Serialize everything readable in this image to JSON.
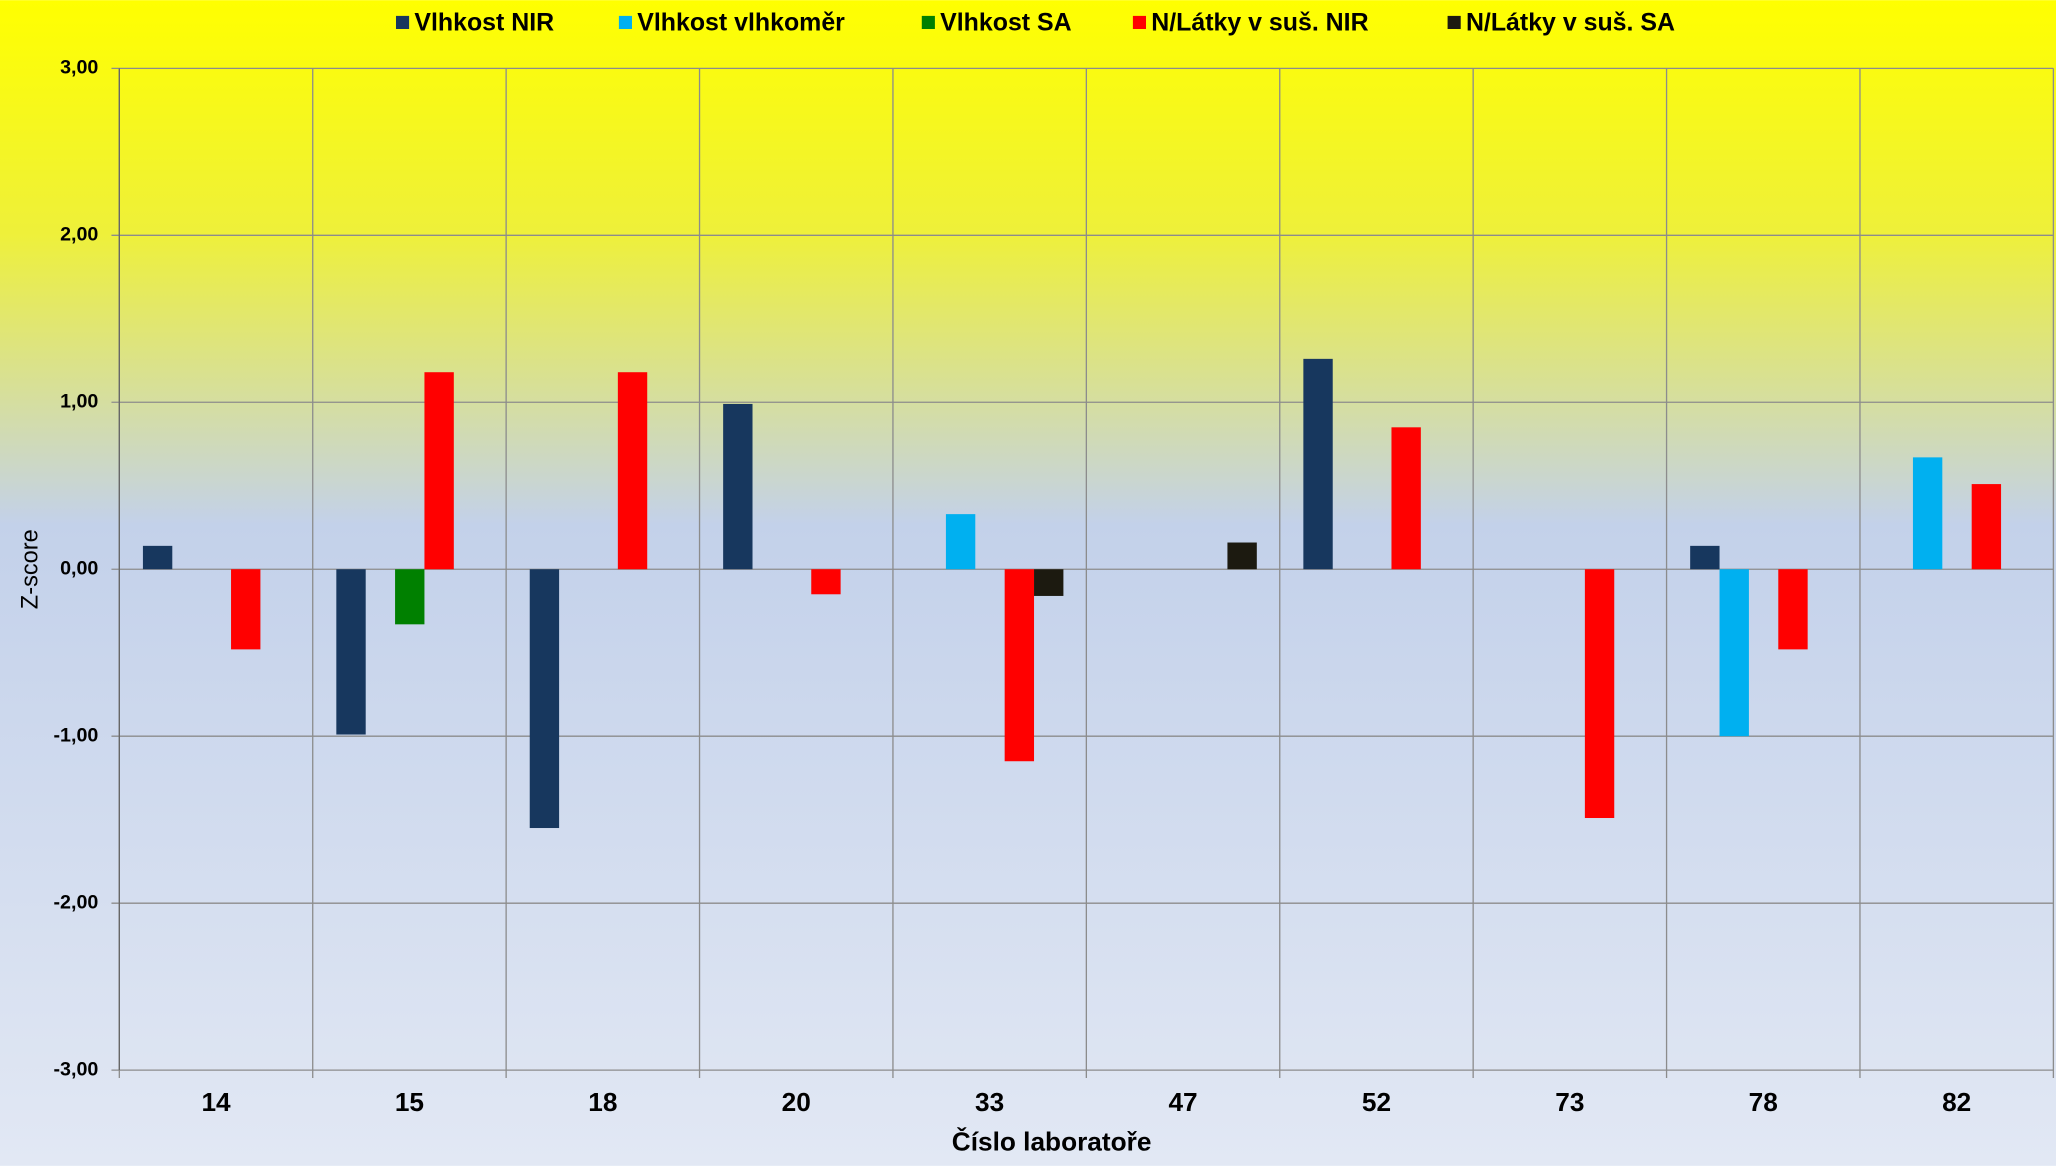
{
  "chart_data": {
    "type": "bar",
    "x_label": "Číslo laboratoře",
    "y_label": "Z-score",
    "categories": [
      "14",
      "15",
      "18",
      "20",
      "33",
      "47",
      "52",
      "73",
      "78",
      "82"
    ],
    "series": [
      {
        "name": "Vlhkost NIR",
        "color": "#17375e",
        "values": [
          0.14,
          -0.99,
          -1.55,
          0.99,
          null,
          null,
          1.26,
          null,
          0.14,
          null
        ]
      },
      {
        "name": "Vlhkost vlhkoměr",
        "color": "#00b0f0",
        "values": [
          null,
          null,
          null,
          null,
          0.33,
          null,
          null,
          null,
          -1.0,
          0.67
        ]
      },
      {
        "name": "Vlhkost SA",
        "color": "#008000",
        "values": [
          null,
          -0.33,
          null,
          null,
          null,
          null,
          null,
          null,
          null,
          null
        ]
      },
      {
        "name": "N/Látky v suš. NIR",
        "color": "#ff0000",
        "values": [
          -0.48,
          1.18,
          1.18,
          -0.15,
          -1.15,
          null,
          0.85,
          -1.49,
          -0.48,
          0.51
        ]
      },
      {
        "name": "N/Látky v suš. SA",
        "color": "#1c1a10",
        "values": [
          null,
          null,
          null,
          null,
          -0.16,
          0.16,
          null,
          null,
          null,
          null
        ]
      }
    ],
    "ylim": [
      -3,
      3
    ],
    "yticks": [
      {
        "value": -3,
        "label": "-3,00"
      },
      {
        "value": -2,
        "label": "-2,00"
      },
      {
        "value": -1,
        "label": "-1,00"
      },
      {
        "value": 0,
        "label": "0,00"
      },
      {
        "value": 1,
        "label": "1,00"
      },
      {
        "value": 2,
        "label": "2,00"
      },
      {
        "value": 3,
        "label": "3,00"
      }
    ],
    "grid": true,
    "legend": "top"
  }
}
